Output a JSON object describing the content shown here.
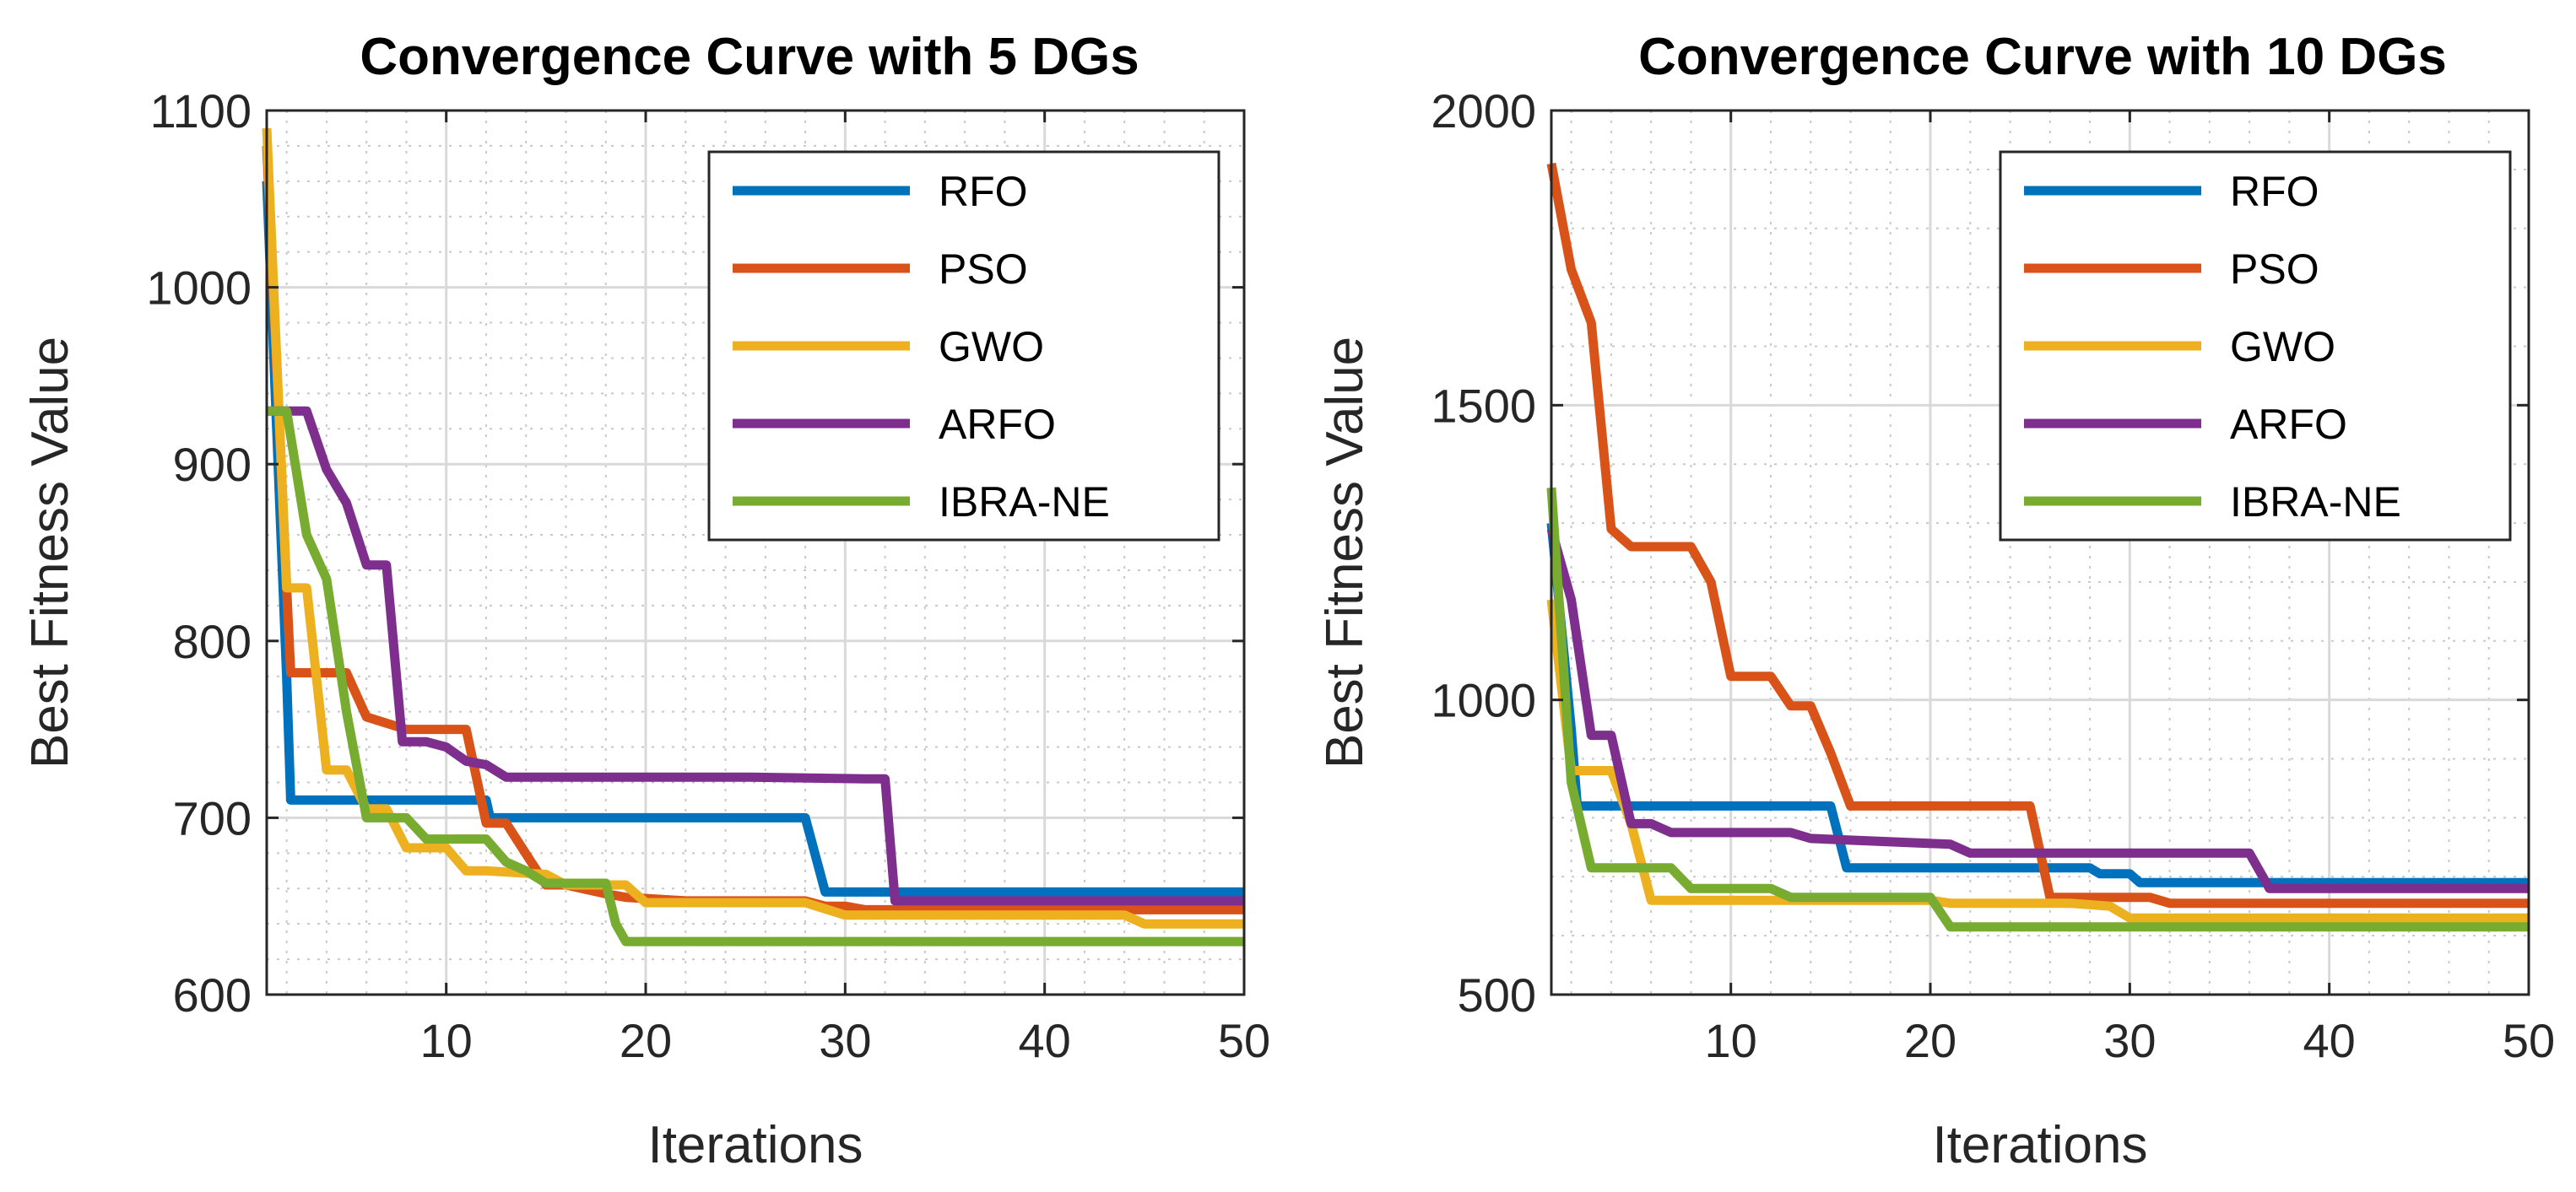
{
  "chart_data": [
    {
      "type": "line",
      "title": "Convergence Curve with 5 DGs",
      "xlabel": "Iterations",
      "ylabel": "Best Fitness Value",
      "xlim": [
        1,
        50
      ],
      "ylim": [
        600,
        1100
      ],
      "xticks": [
        10,
        20,
        30,
        40,
        50
      ],
      "yticks": [
        600,
        700,
        800,
        900,
        1000,
        1100
      ],
      "grid": true,
      "legend_position": "top-right",
      "series": [
        {
          "name": "RFO",
          "color": "#0072BD",
          "x": [
            1,
            2,
            2.2,
            12,
            12.2,
            28,
            29,
            50
          ],
          "y": [
            1060,
            780,
            710,
            710,
            700,
            700,
            658,
            658
          ]
        },
        {
          "name": "PSO",
          "color": "#D95319",
          "x": [
            1,
            2,
            2.2,
            5,
            6,
            8,
            11,
            12,
            13,
            15,
            16,
            18,
            19,
            22,
            26,
            28,
            29,
            30,
            31,
            40,
            50
          ],
          "y": [
            1080,
            830,
            782,
            782,
            757,
            750,
            750,
            697,
            697,
            662,
            662,
            657,
            655,
            653,
            653,
            653,
            650,
            650,
            648,
            648,
            648
          ]
        },
        {
          "name": "GWO",
          "color": "#EDB120",
          "x": [
            1,
            2,
            3,
            4,
            4.3,
            5,
            6,
            7,
            8,
            9,
            10,
            11,
            12,
            15,
            16,
            19,
            20,
            28,
            30,
            44,
            45,
            50
          ],
          "y": [
            1090,
            830,
            830,
            727,
            727,
            727,
            705,
            705,
            683,
            683,
            683,
            670,
            670,
            668,
            662,
            662,
            652,
            652,
            645,
            645,
            640,
            640
          ]
        },
        {
          "name": "ARFO",
          "color": "#7E2F8E",
          "x": [
            1,
            2,
            3,
            4,
            5,
            6,
            7,
            7.8,
            8,
            9,
            10,
            11,
            12,
            13,
            25,
            31,
            32,
            32.5,
            50
          ],
          "y": [
            930,
            930,
            930,
            897,
            878,
            843,
            843,
            743,
            743,
            743,
            740,
            732,
            730,
            723,
            723,
            722,
            722,
            653,
            653
          ]
        },
        {
          "name": "IBRA-NE",
          "color": "#77AC30",
          "x": [
            1,
            2,
            3,
            4,
            5,
            6,
            7,
            8,
            9,
            12,
            13,
            14,
            15,
            18,
            18.5,
            19,
            50
          ],
          "y": [
            930,
            930,
            860,
            835,
            760,
            700,
            700,
            700,
            688,
            688,
            675,
            670,
            663,
            663,
            640,
            630,
            630
          ]
        }
      ]
    },
    {
      "type": "line",
      "title": "Convergence Curve with 10 DGs",
      "xlabel": "Iterations",
      "ylabel": "Best Fitness Value",
      "xlim": [
        1,
        50
      ],
      "ylim": [
        500,
        2000
      ],
      "xticks": [
        10,
        20,
        30,
        40,
        50
      ],
      "yticks": [
        500,
        1000,
        1500,
        2000
      ],
      "grid": true,
      "legend_position": "top-right",
      "series": [
        {
          "name": "RFO",
          "color": "#0072BD",
          "x": [
            1,
            2,
            2.3,
            15,
            15.8,
            28,
            28.5,
            30,
            30.5,
            50
          ],
          "y": [
            1300,
            950,
            820,
            820,
            715,
            715,
            705,
            705,
            690,
            690
          ]
        },
        {
          "name": "PSO",
          "color": "#D95319",
          "x": [
            1,
            2,
            3,
            4,
            5,
            6,
            8,
            9,
            10,
            12,
            13,
            14,
            15,
            16,
            25,
            26,
            31,
            32,
            50
          ],
          "y": [
            1910,
            1730,
            1640,
            1290,
            1260,
            1260,
            1260,
            1200,
            1040,
            1040,
            990,
            990,
            910,
            820,
            820,
            665,
            665,
            655,
            655
          ]
        },
        {
          "name": "GWO",
          "color": "#EDB120",
          "x": [
            1,
            2,
            3,
            4,
            5,
            6,
            20,
            21,
            27,
            29,
            30,
            50
          ],
          "y": [
            1170,
            880,
            880,
            880,
            790,
            660,
            660,
            655,
            655,
            650,
            630,
            630
          ]
        },
        {
          "name": "ARFO",
          "color": "#7E2F8E",
          "x": [
            1,
            2,
            3,
            4,
            5,
            6,
            7,
            13,
            14,
            21,
            22,
            26,
            27,
            36,
            37,
            50
          ],
          "y": [
            1290,
            1170,
            940,
            940,
            790,
            790,
            775,
            775,
            765,
            755,
            740,
            740,
            740,
            740,
            680,
            680
          ]
        },
        {
          "name": "IBRA-NE",
          "color": "#77AC30",
          "x": [
            1,
            2,
            3,
            4,
            5,
            6,
            7,
            8,
            12,
            13,
            20,
            21,
            50
          ],
          "y": [
            1360,
            860,
            715,
            715,
            715,
            715,
            715,
            680,
            680,
            665,
            665,
            615,
            615
          ]
        }
      ]
    }
  ]
}
